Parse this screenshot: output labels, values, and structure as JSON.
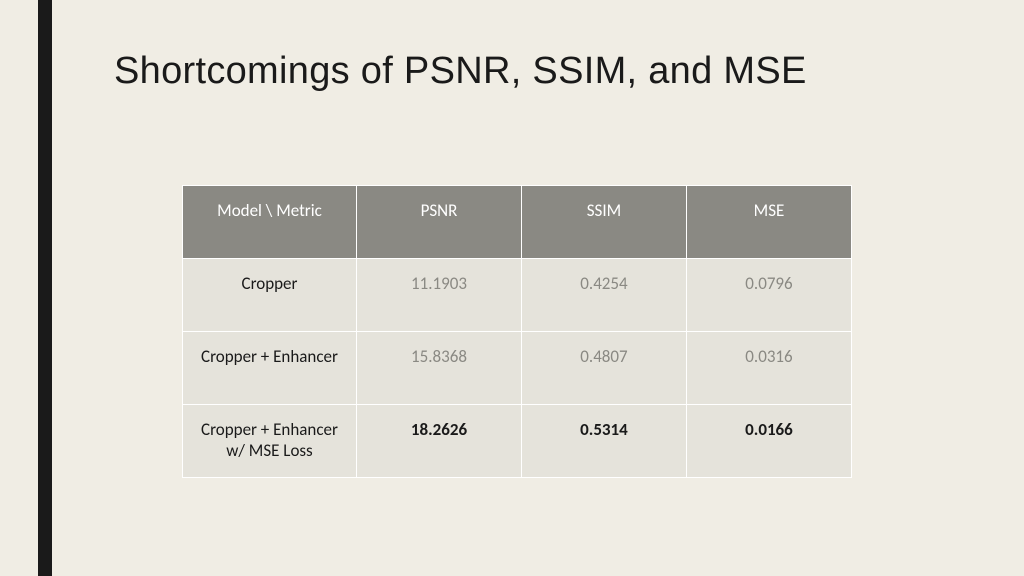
{
  "title": "Shortcomings of PSNR, SSIM, and MSE",
  "accent_color": "#1a1a1a",
  "background_color": "#f0ede4",
  "table": {
    "header_bg": "#8a8983",
    "header_fg": "#ffffff",
    "cell_bg": "#e5e3db",
    "cell_fg_muted": "#8a8983",
    "cell_fg_label": "#1a1a1a",
    "columns": [
      "Model \\ Metric",
      "PSNR",
      "SSIM",
      "MSE"
    ],
    "rows": [
      {
        "label": "Cropper",
        "psnr": "11.1903",
        "ssim": "0.4254",
        "mse": "0.0796",
        "bold": false
      },
      {
        "label": "Cropper + Enhancer",
        "psnr": "15.8368",
        "ssim": "0.4807",
        "mse": "0.0316",
        "bold": false
      },
      {
        "label": "Cropper + Enhancer w/ MSE Loss",
        "psnr": "18.2626",
        "ssim": "0.5314",
        "mse": "0.0166",
        "bold": true
      }
    ]
  }
}
